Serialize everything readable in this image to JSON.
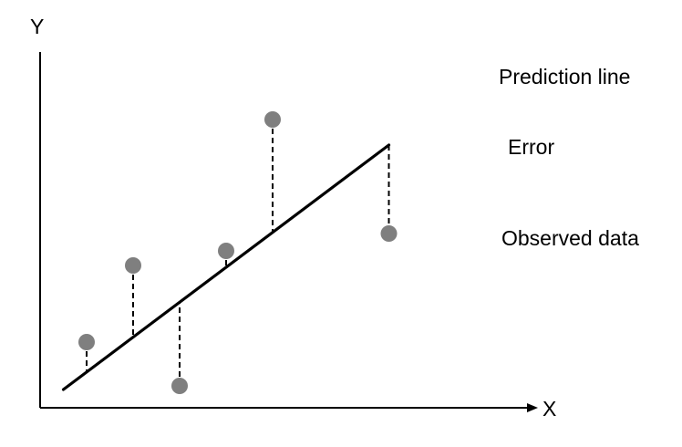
{
  "axes": {
    "y_label": "Y",
    "x_label": "X"
  },
  "legend": {
    "prediction_line": "Prediction line",
    "error": "Error",
    "observed_data": "Observed data"
  },
  "chart_data": {
    "type": "scatter",
    "series": [
      {
        "x": [
          1,
          2,
          3,
          4,
          5
        ],
        "y": [
          1.8,
          3.9,
          0.6,
          4.3,
          7.9
        ]
      }
    ],
    "fit_line": {
      "x": [
        0.5,
        7.5
      ],
      "y": [
        0.5,
        7.2
      ]
    },
    "xlim": [
      0,
      10
    ],
    "ylim": [
      0,
      10
    ],
    "grid": false,
    "legend_placement": "right"
  },
  "colors": {
    "observed_point": "#7f7f7f",
    "line": "#000000"
  }
}
